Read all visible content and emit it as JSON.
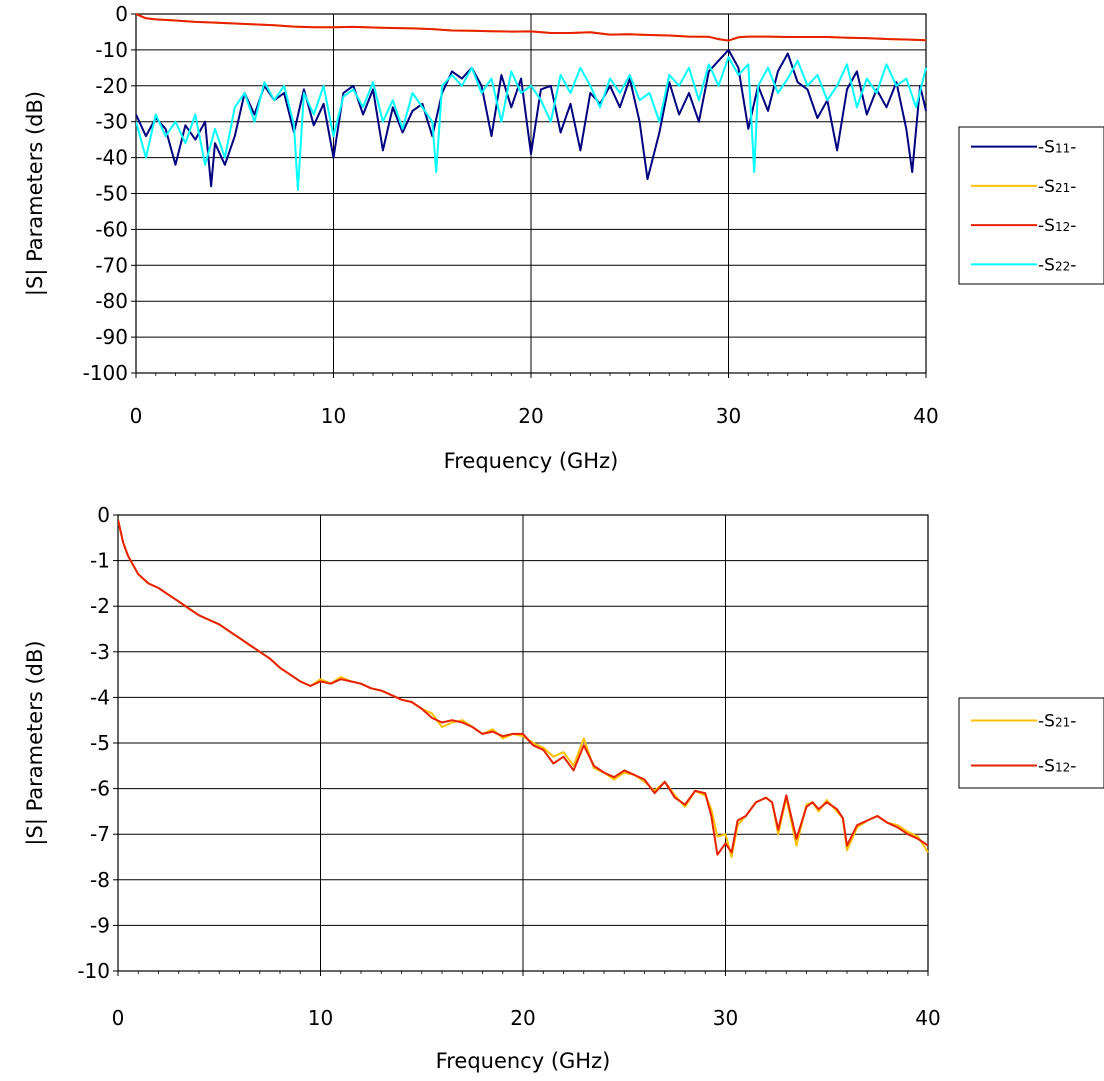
{
  "chart_data": [
    {
      "type": "line",
      "title": "",
      "xlabel": "Frequency (GHz)",
      "ylabel": "|S| Parameters (dB)",
      "xlim": [
        0,
        40
      ],
      "ylim": [
        -100,
        0
      ],
      "xticks": [
        "0",
        "10",
        "20",
        "30",
        "40"
      ],
      "yticks": [
        "0",
        "-10",
        "-20",
        "-30",
        "-40",
        "-50",
        "-60",
        "-70",
        "-80",
        "-90",
        "-100"
      ],
      "grid": true,
      "legend_position": "right",
      "series": [
        {
          "name": "-S11-",
          "name_parts": {
            "pre": "-S",
            "sub": "11",
            "post": "-"
          },
          "color": "#000080",
          "x": [
            0,
            0.5,
            1,
            1.5,
            2,
            2.5,
            3,
            3.5,
            3.8,
            4,
            4.5,
            5,
            5.5,
            6,
            6.5,
            7,
            7.5,
            8,
            8.5,
            9,
            9.5,
            10,
            10.5,
            11,
            11.5,
            12,
            12.5,
            13,
            13.5,
            14,
            14.5,
            15,
            15.5,
            16,
            16.5,
            17,
            17.5,
            18,
            18.5,
            19,
            19.5,
            20,
            20.5,
            21,
            21.5,
            22,
            22.5,
            23,
            23.5,
            24,
            24.5,
            25,
            25.5,
            25.9,
            26.5,
            27,
            27.5,
            28,
            28.5,
            29,
            29.5,
            30,
            30.5,
            31,
            31.5,
            32,
            32.5,
            33,
            33.5,
            34,
            34.5,
            35,
            35.5,
            36,
            36.5,
            37,
            37.5,
            38,
            38.5,
            39,
            39.3,
            39.7,
            40
          ],
          "y": [
            -28,
            -34,
            -29,
            -32,
            -42,
            -31,
            -35,
            -30,
            -48,
            -36,
            -42,
            -34,
            -22,
            -28,
            -20,
            -24,
            -22,
            -33,
            -21,
            -31,
            -25,
            -40,
            -22,
            -20,
            -28,
            -21,
            -38,
            -26,
            -33,
            -27,
            -25,
            -34,
            -22,
            -16,
            -18,
            -15,
            -20,
            -34,
            -17,
            -26,
            -18,
            -39,
            -21,
            -20,
            -33,
            -25,
            -38,
            -22,
            -25,
            -20,
            -26,
            -18,
            -30,
            -46,
            -33,
            -19,
            -28,
            -22,
            -30,
            -16,
            -13,
            -10,
            -15,
            -32,
            -20,
            -27,
            -16,
            -11,
            -19,
            -21,
            -29,
            -24,
            -38,
            -21,
            -16,
            -28,
            -21,
            -26,
            -19,
            -32,
            -44,
            -20,
            -27
          ]
        },
        {
          "name": "-S21-",
          "name_parts": {
            "pre": "-S",
            "sub": "21",
            "post": "-"
          },
          "color": "#ffc000",
          "x": [
            0,
            0.5,
            1,
            2,
            3,
            4,
            5,
            6,
            7,
            8,
            9,
            10,
            11,
            12,
            13,
            14,
            15,
            16,
            17,
            18,
            19,
            20,
            21,
            22,
            23,
            24,
            25,
            26,
            27,
            28,
            29,
            29.5,
            30,
            30.5,
            31,
            32,
            33,
            34,
            35,
            36,
            37,
            38,
            39,
            40
          ],
          "y": [
            0,
            -1.2,
            -1.5,
            -1.8,
            -2.2,
            -2.4,
            -2.65,
            -2.9,
            -3.15,
            -3.5,
            -3.7,
            -3.7,
            -3.6,
            -3.75,
            -3.9,
            -4.0,
            -4.2,
            -4.6,
            -4.65,
            -4.8,
            -4.9,
            -4.85,
            -5.3,
            -5.3,
            -5.1,
            -5.75,
            -5.65,
            -5.85,
            -6.0,
            -6.3,
            -6.35,
            -7.0,
            -7.4,
            -6.5,
            -6.3,
            -6.3,
            -6.4,
            -6.4,
            -6.4,
            -6.6,
            -6.7,
            -6.95,
            -7.1,
            -7.3
          ]
        },
        {
          "name": "-S12-",
          "name_parts": {
            "pre": "-S",
            "sub": "12",
            "post": "-"
          },
          "color": "#e62000",
          "x": [
            0,
            0.5,
            1,
            2,
            3,
            4,
            5,
            6,
            7,
            8,
            9,
            10,
            11,
            12,
            13,
            14,
            15,
            16,
            17,
            18,
            19,
            20,
            21,
            22,
            23,
            24,
            25,
            26,
            27,
            28,
            29,
            29.5,
            30,
            30.5,
            31,
            32,
            33,
            34,
            35,
            36,
            37,
            38,
            39,
            40
          ],
          "y": [
            0,
            -1.2,
            -1.5,
            -1.8,
            -2.2,
            -2.4,
            -2.65,
            -2.9,
            -3.15,
            -3.5,
            -3.7,
            -3.7,
            -3.6,
            -3.75,
            -3.9,
            -4.0,
            -4.2,
            -4.6,
            -4.65,
            -4.8,
            -4.9,
            -4.85,
            -5.3,
            -5.3,
            -5.1,
            -5.75,
            -5.65,
            -5.85,
            -6.0,
            -6.3,
            -6.35,
            -7.0,
            -7.4,
            -6.5,
            -6.3,
            -6.3,
            -6.4,
            -6.4,
            -6.4,
            -6.6,
            -6.7,
            -6.95,
            -7.1,
            -7.3
          ]
        },
        {
          "name": "-S22-",
          "name_parts": {
            "pre": "-S",
            "sub": "22",
            "post": "-"
          },
          "color": "#00ffff",
          "x": [
            0,
            0.5,
            1,
            1.5,
            2,
            2.5,
            3,
            3.5,
            4,
            4.5,
            5,
            5.5,
            6,
            6.5,
            7,
            7.5,
            8,
            8.2,
            8.5,
            9,
            9.5,
            10,
            10.5,
            11,
            11.5,
            12,
            12.5,
            13,
            13.5,
            14,
            14.5,
            15,
            15.2,
            15.5,
            16,
            16.5,
            17,
            17.5,
            18,
            18.5,
            19,
            19.5,
            20,
            20.5,
            21,
            21.5,
            22,
            22.5,
            23,
            23.5,
            24,
            24.5,
            25,
            25.5,
            26,
            26.5,
            27,
            27.5,
            28,
            28.5,
            29,
            29.5,
            30,
            30.5,
            31,
            31.3,
            31.5,
            32,
            32.5,
            33,
            33.5,
            34,
            34.5,
            35,
            35.5,
            36,
            36.5,
            37,
            37.5,
            38,
            38.5,
            39,
            39.5,
            40
          ],
          "y": [
            -30,
            -40,
            -28,
            -34,
            -30,
            -36,
            -28,
            -42,
            -32,
            -40,
            -26,
            -22,
            -30,
            -19,
            -24,
            -20,
            -31,
            -49,
            -22,
            -28,
            -20,
            -34,
            -23,
            -21,
            -26,
            -19,
            -30,
            -24,
            -32,
            -22,
            -26,
            -30,
            -44,
            -20,
            -17,
            -20,
            -15,
            -22,
            -18,
            -30,
            -16,
            -22,
            -20,
            -24,
            -30,
            -17,
            -22,
            -15,
            -20,
            -26,
            -18,
            -22,
            -17,
            -24,
            -22,
            -30,
            -17,
            -20,
            -15,
            -24,
            -14,
            -20,
            -12,
            -17,
            -14,
            -44,
            -20,
            -15,
            -22,
            -18,
            -13,
            -20,
            -17,
            -24,
            -20,
            -14,
            -26,
            -18,
            -22,
            -14,
            -20,
            -18,
            -26,
            -15
          ]
        }
      ]
    },
    {
      "type": "line",
      "title": "",
      "xlabel": "Frequency (GHz)",
      "ylabel": "|S| Parameters (dB)",
      "xlim": [
        0,
        40
      ],
      "ylim": [
        -10,
        0
      ],
      "xticks": [
        "0",
        "10",
        "20",
        "30",
        "40"
      ],
      "yticks": [
        "0",
        "-1",
        "-2",
        "-3",
        "-4",
        "-5",
        "-6",
        "-7",
        "-8",
        "-9",
        "-10"
      ],
      "grid": true,
      "legend_position": "right",
      "series": [
        {
          "name": "-S21-",
          "name_parts": {
            "pre": "-S",
            "sub": "21",
            "post": "-"
          },
          "color": "#ffc000",
          "x": [
            0,
            0.25,
            0.5,
            1,
            1.5,
            2,
            2.5,
            3,
            3.5,
            4,
            4.5,
            5,
            5.5,
            6,
            6.5,
            7,
            7.5,
            8,
            8.5,
            9,
            9.5,
            10,
            10.5,
            11,
            11.5,
            12,
            12.5,
            13,
            13.5,
            14,
            14.5,
            15,
            15.5,
            16,
            16.5,
            17,
            17.5,
            18,
            18.5,
            19,
            19.5,
            20,
            20.5,
            21,
            21.5,
            22,
            22.5,
            23,
            23.5,
            24,
            24.5,
            25,
            25.5,
            26,
            26.5,
            27,
            27.5,
            28,
            28.5,
            29,
            29.3,
            29.6,
            30,
            30.3,
            30.6,
            31,
            31.5,
            32,
            32.3,
            32.6,
            33,
            33.5,
            34,
            34.3,
            34.6,
            35,
            35.5,
            35.8,
            36,
            36.5,
            37,
            37.5,
            38,
            38.5,
            39,
            39.5,
            40
          ],
          "y": [
            -0.1,
            -0.6,
            -0.9,
            -1.3,
            -1.5,
            -1.6,
            -1.75,
            -1.9,
            -2.05,
            -2.2,
            -2.3,
            -2.4,
            -2.55,
            -2.7,
            -2.85,
            -3.0,
            -3.15,
            -3.35,
            -3.5,
            -3.65,
            -3.75,
            -3.6,
            -3.7,
            -3.55,
            -3.65,
            -3.7,
            -3.8,
            -3.85,
            -3.95,
            -4.05,
            -4.1,
            -4.25,
            -4.35,
            -4.65,
            -4.55,
            -4.5,
            -4.65,
            -4.8,
            -4.7,
            -4.9,
            -4.8,
            -4.85,
            -5.0,
            -5.1,
            -5.3,
            -5.2,
            -5.5,
            -4.9,
            -5.55,
            -5.65,
            -5.8,
            -5.65,
            -5.7,
            -5.85,
            -6.05,
            -5.85,
            -6.15,
            -6.4,
            -6.05,
            -6.15,
            -6.45,
            -7.05,
            -7.0,
            -7.5,
            -6.8,
            -6.6,
            -6.3,
            -6.2,
            -6.3,
            -7.0,
            -6.2,
            -7.25,
            -6.35,
            -6.3,
            -6.5,
            -6.25,
            -6.5,
            -6.65,
            -7.35,
            -6.85,
            -6.7,
            -6.6,
            -6.75,
            -6.8,
            -6.95,
            -7.05,
            -7.4
          ]
        },
        {
          "name": "-S12-",
          "name_parts": {
            "pre": "-S",
            "sub": "12",
            "post": "-"
          },
          "color": "#e62000",
          "x": [
            0,
            0.25,
            0.5,
            1,
            1.5,
            2,
            2.5,
            3,
            3.5,
            4,
            4.5,
            5,
            5.5,
            6,
            6.5,
            7,
            7.5,
            8,
            8.5,
            9,
            9.5,
            10,
            10.5,
            11,
            11.5,
            12,
            12.5,
            13,
            13.5,
            14,
            14.5,
            15,
            15.5,
            16,
            16.5,
            17,
            17.5,
            18,
            18.5,
            19,
            19.5,
            20,
            20.5,
            21,
            21.5,
            22,
            22.5,
            23,
            23.5,
            24,
            24.5,
            25,
            25.5,
            26,
            26.5,
            27,
            27.5,
            28,
            28.5,
            29,
            29.3,
            29.6,
            30,
            30.3,
            30.6,
            31,
            31.5,
            32,
            32.3,
            32.6,
            33,
            33.5,
            34,
            34.3,
            34.6,
            35,
            35.5,
            35.8,
            36,
            36.5,
            37,
            37.5,
            38,
            38.5,
            39,
            39.5,
            40
          ],
          "y": [
            -0.1,
            -0.6,
            -0.9,
            -1.3,
            -1.5,
            -1.6,
            -1.75,
            -1.9,
            -2.05,
            -2.2,
            -2.3,
            -2.4,
            -2.55,
            -2.7,
            -2.85,
            -3.0,
            -3.15,
            -3.35,
            -3.5,
            -3.65,
            -3.75,
            -3.65,
            -3.7,
            -3.6,
            -3.65,
            -3.7,
            -3.8,
            -3.85,
            -3.95,
            -4.05,
            -4.1,
            -4.25,
            -4.45,
            -4.55,
            -4.5,
            -4.55,
            -4.65,
            -4.8,
            -4.75,
            -4.85,
            -4.8,
            -4.8,
            -5.05,
            -5.15,
            -5.45,
            -5.3,
            -5.6,
            -5.05,
            -5.5,
            -5.65,
            -5.75,
            -5.6,
            -5.7,
            -5.8,
            -6.1,
            -5.85,
            -6.2,
            -6.35,
            -6.05,
            -6.1,
            -6.6,
            -7.45,
            -7.2,
            -7.4,
            -6.7,
            -6.6,
            -6.3,
            -6.2,
            -6.3,
            -6.9,
            -6.15,
            -7.1,
            -6.4,
            -6.3,
            -6.45,
            -6.3,
            -6.45,
            -6.65,
            -7.25,
            -6.8,
            -6.7,
            -6.6,
            -6.75,
            -6.85,
            -7.0,
            -7.1,
            -7.25
          ]
        }
      ]
    }
  ]
}
